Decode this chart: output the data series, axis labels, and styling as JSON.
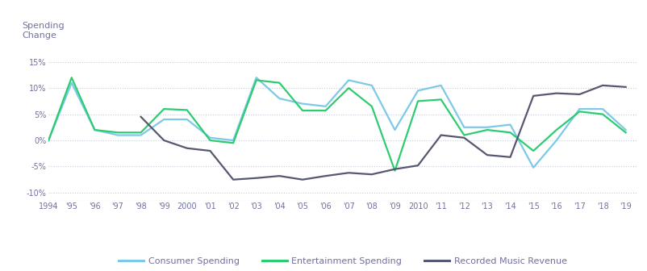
{
  "title": "Spending\nChange",
  "xlim": [
    1994,
    2019.5
  ],
  "ylim": [
    -0.115,
    0.175
  ],
  "yticks": [
    -0.1,
    -0.05,
    0.0,
    0.05,
    0.1,
    0.15
  ],
  "ytick_labels": [
    "-10%",
    "-5%",
    "0%",
    "5%",
    "10%",
    "15%"
  ],
  "xtick_years": [
    1994,
    1995,
    1996,
    1997,
    1998,
    1999,
    2000,
    2001,
    2002,
    2003,
    2004,
    2005,
    2006,
    2007,
    2008,
    2009,
    2010,
    2011,
    2012,
    2013,
    2014,
    2015,
    2016,
    2017,
    2018,
    2019
  ],
  "xtick_labels": [
    "1994",
    "'95",
    "'96",
    "'97",
    "'98",
    "'99",
    "2000",
    "'01",
    "'02",
    "'03",
    "'04",
    "'05",
    "'06",
    "'07",
    "'08",
    "'09",
    "2010",
    "'11",
    "'12",
    "'13",
    "'14",
    "'15",
    "'16",
    "'17",
    "'18",
    "'19"
  ],
  "consumer_spending": {
    "years": [
      1994,
      1995,
      1996,
      1997,
      1998,
      1999,
      2000,
      2001,
      2002,
      2003,
      2004,
      2005,
      2006,
      2007,
      2008,
      2009,
      2010,
      2011,
      2012,
      2013,
      2014,
      2015,
      2016,
      2017,
      2018,
      2019
    ],
    "values": [
      0.0,
      0.11,
      0.02,
      0.01,
      0.01,
      0.04,
      0.04,
      0.005,
      0.0,
      0.12,
      0.08,
      0.07,
      0.065,
      0.115,
      0.105,
      0.02,
      0.095,
      0.105,
      0.025,
      0.025,
      0.03,
      -0.052,
      0.0,
      0.06,
      0.06,
      0.02
    ],
    "color": "#7EC8E8",
    "linewidth": 1.6
  },
  "entertainment_spending": {
    "years": [
      1994,
      1995,
      1996,
      1997,
      1998,
      1999,
      2000,
      2001,
      2002,
      2003,
      2004,
      2005,
      2006,
      2007,
      2008,
      2009,
      2010,
      2011,
      2012,
      2013,
      2014,
      2015,
      2016,
      2017,
      2018,
      2019
    ],
    "values": [
      0.0,
      0.12,
      0.02,
      0.015,
      0.015,
      0.06,
      0.058,
      0.0,
      -0.005,
      0.115,
      0.11,
      0.057,
      0.057,
      0.1,
      0.065,
      -0.058,
      0.075,
      0.078,
      0.01,
      0.02,
      0.015,
      -0.02,
      0.02,
      0.055,
      0.05,
      0.015
    ],
    "color": "#2ECC71",
    "linewidth": 1.6
  },
  "recorded_music": {
    "years": [
      1998,
      1999,
      2000,
      2001,
      2002,
      2003,
      2004,
      2005,
      2006,
      2007,
      2008,
      2009,
      2010,
      2011,
      2012,
      2013,
      2014,
      2015,
      2016,
      2017,
      2018,
      2019
    ],
    "values": [
      0.045,
      0.0,
      -0.015,
      -0.02,
      -0.075,
      -0.072,
      -0.068,
      -0.075,
      -0.068,
      -0.062,
      -0.065,
      -0.055,
      -0.048,
      0.01,
      0.005,
      -0.028,
      -0.032,
      0.085,
      0.09,
      0.088,
      0.105,
      0.102
    ],
    "color": "#555870",
    "linewidth": 1.6
  },
  "background_color": "#FFFFFF",
  "grid_color": "#C8CAD8",
  "label_color": "#7070A0",
  "legend": {
    "consumer": "Consumer Spending",
    "entertainment": "Entertainment Spending",
    "music": "Recorded Music Revenue"
  },
  "figsize": [
    8.02,
    3.36
  ],
  "dpi": 100
}
